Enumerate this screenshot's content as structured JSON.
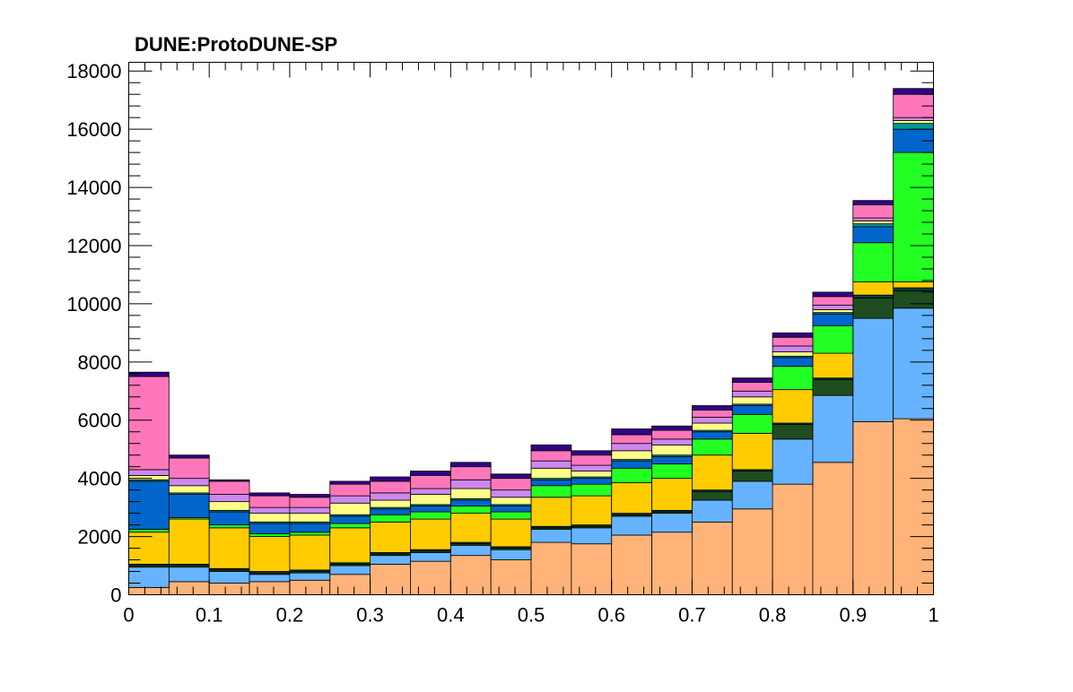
{
  "chart_data": {
    "type": "bar",
    "stacked": true,
    "histogram": true,
    "title": "DUNE:ProtoDUNE-SP",
    "xlabel": "",
    "ylabel": "",
    "xlim": [
      0,
      1
    ],
    "ylim": [
      0,
      18300
    ],
    "x_ticks": [
      "0",
      "0.1",
      "0.2",
      "0.3",
      "0.4",
      "0.5",
      "0.6",
      "0.7",
      "0.8",
      "0.9",
      "1"
    ],
    "y_ticks": [
      "0",
      "2000",
      "4000",
      "6000",
      "8000",
      "10000",
      "12000",
      "14000",
      "16000",
      "18000"
    ],
    "grid": false,
    "legend": "none",
    "bin_edges": [
      0,
      0.05,
      0.1,
      0.15,
      0.2,
      0.25,
      0.3,
      0.35,
      0.4,
      0.45,
      0.5,
      0.55,
      0.6,
      0.65,
      0.7,
      0.75,
      0.8,
      0.85,
      0.9,
      0.95,
      1.0
    ],
    "series": [
      {
        "color": "#ffb378",
        "values": [
          250,
          450,
          400,
          450,
          500,
          700,
          1050,
          1150,
          1350,
          1200,
          1800,
          1750,
          2050,
          2150,
          2500,
          2950,
          3800,
          4550,
          5950,
          6050
        ]
      },
      {
        "color": "#66b3ff",
        "values": [
          700,
          500,
          400,
          250,
          250,
          300,
          300,
          300,
          350,
          350,
          450,
          550,
          650,
          650,
          750,
          950,
          1550,
          2300,
          3550,
          3800
        ]
      },
      {
        "color": "#1f4d1f",
        "values": [
          50,
          50,
          50,
          50,
          50,
          50,
          50,
          50,
          50,
          50,
          50,
          50,
          50,
          50,
          300,
          350,
          500,
          550,
          700,
          600
        ]
      },
      {
        "color": "#004040",
        "values": [
          50,
          50,
          50,
          50,
          50,
          50,
          50,
          50,
          50,
          50,
          50,
          50,
          50,
          50,
          50,
          50,
          50,
          50,
          100,
          100
        ]
      },
      {
        "color": "#ffcc00",
        "values": [
          1100,
          1550,
          1400,
          1200,
          1200,
          1200,
          1050,
          1050,
          1000,
          950,
          1000,
          1000,
          1050,
          1100,
          1200,
          1250,
          1150,
          850,
          450,
          200
        ]
      },
      {
        "color": "#22ff22",
        "values": [
          100,
          50,
          100,
          100,
          100,
          150,
          250,
          250,
          250,
          250,
          400,
          400,
          500,
          500,
          550,
          650,
          800,
          950,
          1350,
          4450
        ]
      },
      {
        "color": "#0066cc",
        "values": [
          1650,
          800,
          450,
          350,
          300,
          250,
          200,
          200,
          200,
          200,
          200,
          200,
          250,
          250,
          250,
          300,
          300,
          400,
          550,
          800
        ]
      },
      {
        "color": "#009999",
        "values": [
          50,
          50,
          50,
          50,
          50,
          50,
          50,
          50,
          50,
          50,
          50,
          50,
          50,
          50,
          50,
          50,
          50,
          50,
          100,
          200
        ]
      },
      {
        "color": "#ffff88",
        "values": [
          150,
          250,
          300,
          300,
          300,
          400,
          250,
          350,
          350,
          250,
          350,
          200,
          300,
          350,
          250,
          250,
          150,
          100,
          100,
          100
        ]
      },
      {
        "color": "#cc88ee",
        "values": [
          200,
          250,
          250,
          200,
          200,
          250,
          250,
          200,
          300,
          250,
          250,
          200,
          250,
          200,
          200,
          200,
          200,
          150,
          100,
          100
        ]
      },
      {
        "color": "#ff77bb",
        "values": [
          3200,
          700,
          450,
          400,
          350,
          400,
          400,
          450,
          450,
          400,
          350,
          350,
          300,
          300,
          250,
          300,
          300,
          300,
          450,
          800
        ]
      },
      {
        "color": "#330088",
        "values": [
          150,
          100,
          50,
          100,
          100,
          100,
          150,
          150,
          150,
          150,
          200,
          150,
          200,
          150,
          150,
          150,
          150,
          150,
          150,
          200
        ]
      }
    ]
  }
}
